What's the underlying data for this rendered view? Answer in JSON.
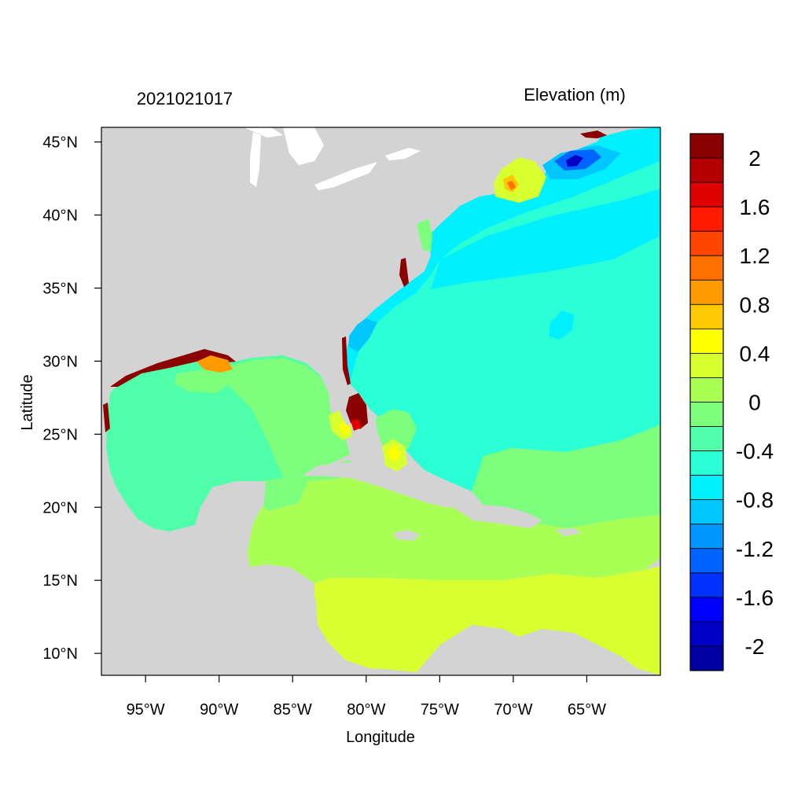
{
  "header": {
    "timestamp": "2021021017",
    "variable": "Elevation (m)"
  },
  "axes": {
    "xlabel": "Longitude",
    "ylabel": "Latitude",
    "xticks": [
      {
        "value": -95,
        "label": "95°W"
      },
      {
        "value": -90,
        "label": "90°W"
      },
      {
        "value": -85,
        "label": "85°W"
      },
      {
        "value": -80,
        "label": "80°W"
      },
      {
        "value": -75,
        "label": "75°W"
      },
      {
        "value": -70,
        "label": "70°W"
      },
      {
        "value": -65,
        "label": "65°W"
      }
    ],
    "yticks": [
      {
        "value": 45,
        "label": "45°N"
      },
      {
        "value": 40,
        "label": "40°N"
      },
      {
        "value": 35,
        "label": "35°N"
      },
      {
        "value": 30,
        "label": "30°N"
      },
      {
        "value": 25,
        "label": "25°N"
      },
      {
        "value": 20,
        "label": "20°N"
      },
      {
        "value": 15,
        "label": "15°N"
      },
      {
        "value": 10,
        "label": "10°N"
      }
    ],
    "lon_range": [
      -98,
      -60
    ],
    "lat_range": [
      8.5,
      46
    ]
  },
  "colorbar": {
    "bins": [
      {
        "color": "#8b0000"
      },
      {
        "color": "#b40000"
      },
      {
        "color": "#e00000"
      },
      {
        "color": "#ff1a00"
      },
      {
        "color": "#ff4500"
      },
      {
        "color": "#ff7000"
      },
      {
        "color": "#ff9a00"
      },
      {
        "color": "#ffc800"
      },
      {
        "color": "#ffff00"
      },
      {
        "color": "#d8ff30"
      },
      {
        "color": "#aaff55"
      },
      {
        "color": "#7dff7d"
      },
      {
        "color": "#50ffaa"
      },
      {
        "color": "#2affd5"
      },
      {
        "color": "#00f0ff"
      },
      {
        "color": "#00c8ff"
      },
      {
        "color": "#0096ff"
      },
      {
        "color": "#0064ff"
      },
      {
        "color": "#0032ff"
      },
      {
        "color": "#0000ff"
      },
      {
        "color": "#0000c8"
      },
      {
        "color": "#0000a0"
      }
    ],
    "labels": [
      {
        "text": "2",
        "value": 2.0
      },
      {
        "text": "1.6",
        "value": 1.6
      },
      {
        "text": "1.2",
        "value": 1.2
      },
      {
        "text": "0.8",
        "value": 0.8
      },
      {
        "text": "0.4",
        "value": 0.4
      },
      {
        "text": "0",
        "value": 0.0
      },
      {
        "text": "-0.4",
        "value": -0.4
      },
      {
        "text": "-0.8",
        "value": -0.8
      },
      {
        "text": "-1.2",
        "value": -1.2
      },
      {
        "text": "-1.6",
        "value": -1.6
      },
      {
        "text": "-2",
        "value": -2.0
      }
    ]
  },
  "colors": {
    "land": "#d3d3d3",
    "atlantic": "#2affd5",
    "gulf": "#50ffaa",
    "caribbean_north": "#aaff55",
    "caribbean_south": "#d8ff30",
    "deep_negative": "#00f0ff",
    "surge_high": "#8b0000"
  }
}
